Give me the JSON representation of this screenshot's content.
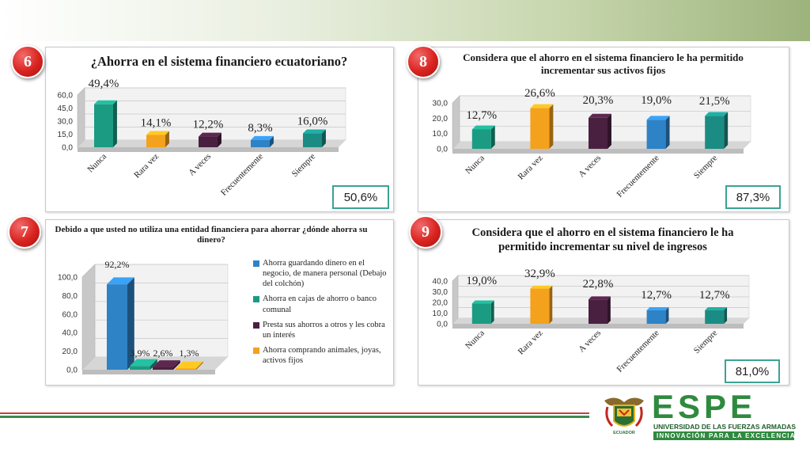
{
  "colors": {
    "teal": "#1b9b82",
    "orange": "#f4a11d",
    "purple": "#4a2040",
    "blue": "#2e82c6",
    "teal2": "#1a8c84",
    "badge": "#d9231f",
    "box_border": "#3aa392"
  },
  "panels": [
    {
      "number": "6",
      "title": "¿Ahorra en el sistema financiero ecuatoriano?",
      "total": "50,6%"
    },
    {
      "number": "8",
      "title": "Considera que el ahorro en el sistema financiero le ha permitido incrementar sus activos fijos",
      "total": "87,3%"
    },
    {
      "number": "7",
      "title": "Debido a que usted no utiliza una entidad financiera para ahorrar ¿dónde ahorra su dinero?"
    },
    {
      "number": "9",
      "title": "Considera que el ahorro en el sistema financiero le ha permitido incrementar su nivel de ingresos",
      "total": "81,0%"
    }
  ],
  "chart_data": [
    {
      "type": "bar",
      "categories": [
        "Nunca",
        "Rara vez",
        "A veces",
        "Frecuentemente",
        "Siempre"
      ],
      "values": [
        49.4,
        14.1,
        12.2,
        8.3,
        16.0
      ],
      "labels": [
        "49,4%",
        "14,1%",
        "12,2%",
        "8,3%",
        "16,0%"
      ],
      "ytick_labels": [
        "0,0",
        "15,0",
        "30,0",
        "45,0",
        "60,0"
      ],
      "ylim": [
        0,
        60
      ],
      "colors": [
        "#1b9b82",
        "#f4a11d",
        "#4a2040",
        "#2e82c6",
        "#1a8c84"
      ]
    },
    {
      "type": "bar",
      "categories": [
        "Nunca",
        "Rara vez",
        "A veces",
        "Frecuentemente",
        "Siempre"
      ],
      "values": [
        12.7,
        26.6,
        20.3,
        19.0,
        21.5
      ],
      "labels": [
        "12,7%",
        "26,6%",
        "20,3%",
        "19,0%",
        "21,5%"
      ],
      "ytick_labels": [
        "0,0",
        "10,0",
        "20,0",
        "30,0"
      ],
      "ylim": [
        0,
        30
      ],
      "colors": [
        "#1b9b82",
        "#f4a11d",
        "#4a2040",
        "#2e82c6",
        "#1a8c84"
      ]
    },
    {
      "type": "bar",
      "categories": [
        "Ahorra guardando dinero en el negocio, de manera personal (Debajo del colchón)",
        "Ahorra en cajas de ahorro o banco comunal",
        "Presta sus ahorros a otros y les cobra un interés",
        "Ahorra comprando animales, joyas, activos fijos"
      ],
      "values": [
        92.2,
        3.9,
        2.6,
        1.3
      ],
      "labels": [
        "92,2%",
        "3,9%",
        "2,6%",
        "1,3%"
      ],
      "ytick_labels": [
        "0,0",
        "20,0",
        "40,0",
        "60,0",
        "80,0",
        "100,0"
      ],
      "ylim": [
        0,
        100
      ],
      "colors": [
        "#2e82c6",
        "#1b9b82",
        "#4a2040",
        "#f4a11d"
      ]
    },
    {
      "type": "bar",
      "categories": [
        "Nunca",
        "Rara vez",
        "A veces",
        "Frecuentemente",
        "Siempre"
      ],
      "values": [
        19.0,
        32.9,
        22.8,
        12.7,
        12.7
      ],
      "labels": [
        "19,0%",
        "32,9%",
        "22,8%",
        "12,7%",
        "12,7%"
      ],
      "ytick_labels": [
        "0,0",
        "10,0",
        "20,0",
        "30,0",
        "40,0"
      ],
      "ylim": [
        0,
        40
      ],
      "colors": [
        "#1b9b82",
        "#f4a11d",
        "#4a2040",
        "#2e82c6",
        "#1a8c84"
      ]
    }
  ],
  "logo": {
    "wordmark": "ESPE",
    "university": "UNIVERSIDAD DE LAS FUERZAS ARMADAS",
    "tagline": "INNOVACIÓN PARA LA EXCELENCIA",
    "crest_text": "ECUADOR"
  }
}
